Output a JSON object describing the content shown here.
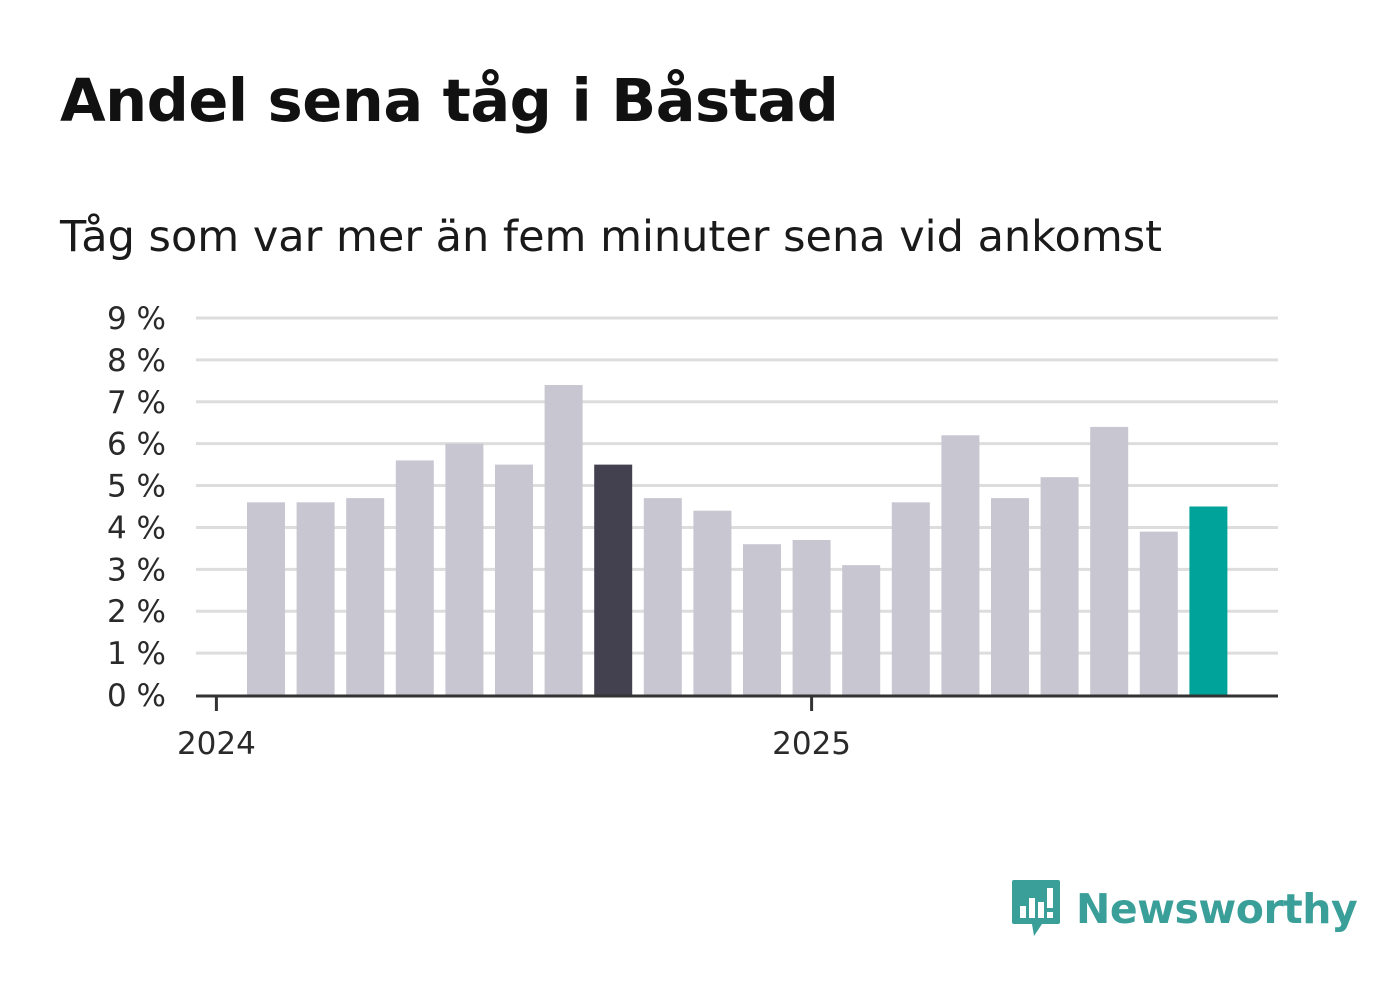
{
  "title": "Andel sena tåg i Båstad",
  "subtitle": "Tåg som var mer än fem minuter sena vid ankomst",
  "brand": {
    "name": "Newsworthy",
    "icon": "newsworthy-logo-icon",
    "color": "#3a9e99"
  },
  "colors": {
    "default_bar": "#c8c6d1",
    "highlight_bar": "#43414f",
    "latest_bar": "#00a399",
    "grid": "#dddddd",
    "axis": "#333333"
  },
  "chart_data": {
    "type": "bar",
    "categories": [
      "2024-01",
      "2024-02",
      "2024-03",
      "2024-04",
      "2024-05",
      "2024-06",
      "2024-07",
      "2024-08",
      "2024-09",
      "2024-10",
      "2024-11",
      "2024-12",
      "2025-01",
      "2025-02",
      "2025-03",
      "2025-04",
      "2025-05",
      "2025-06",
      "2025-07",
      "2025-08"
    ],
    "values": [
      4.6,
      4.6,
      4.7,
      5.6,
      6.0,
      5.5,
      7.4,
      5.5,
      4.7,
      4.4,
      3.6,
      3.7,
      3.1,
      4.6,
      6.2,
      4.7,
      5.2,
      6.4,
      3.9,
      4.5
    ],
    "highlight_index": 7,
    "latest_index": 19,
    "ylim": [
      0,
      9
    ],
    "yticks": [
      "0 %",
      "1 %",
      "2 %",
      "3 %",
      "4 %",
      "5 %",
      "6 %",
      "7 %",
      "8 %",
      "9 %"
    ],
    "xticks": [
      {
        "label": "2024",
        "category": "2024-01"
      },
      {
        "label": "2025",
        "category": "2025-01"
      }
    ],
    "grid": true,
    "legend": "none"
  }
}
